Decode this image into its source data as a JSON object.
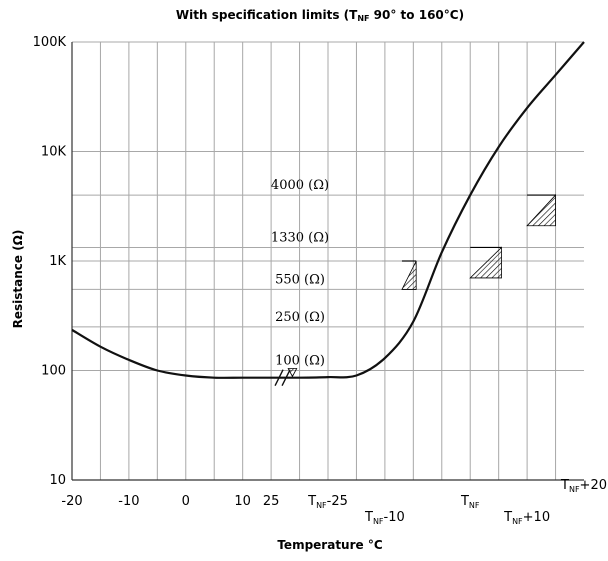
{
  "chart_data": {
    "type": "line",
    "title": "With specification limits (T_NF 90° to 160°C)",
    "title_parts": {
      "pre": "With specification limits (T",
      "sub": "NF",
      "post": " 90° to 160°C)"
    },
    "xlabel": "Temperature °C",
    "ylabel": "Resistance (Ω)",
    "yscale": "log",
    "ylim": [
      10,
      100000
    ],
    "y_ticks": [
      {
        "value": 10,
        "label": "10"
      },
      {
        "value": 100,
        "label": "100"
      },
      {
        "value": 1000,
        "label": "1K"
      },
      {
        "value": 10000,
        "label": "10K"
      },
      {
        "value": 100000,
        "label": "100K"
      }
    ],
    "x_tick_labels": [
      {
        "label": "-20",
        "row": 0
      },
      {
        "label": "-10",
        "row": 0
      },
      {
        "label": "0",
        "row": 0
      },
      {
        "label": "10",
        "row": 0
      },
      {
        "label": "25",
        "row": 0
      },
      {
        "label": "T_NF-25",
        "row": 0
      },
      {
        "label": "T_NF-10",
        "row": 1
      },
      {
        "label": "T_NF",
        "row": 0
      },
      {
        "label": "T_NF+10",
        "row": 1
      },
      {
        "label": "T_NF+20",
        "row": -1
      }
    ],
    "x_grid_count": 18,
    "horizontal_grid_ohms": [
      250,
      550,
      1330,
      4000
    ],
    "level_labels": [
      {
        "text": "4000 (Ω)",
        "ohms": 4000
      },
      {
        "text": "1330 (Ω)",
        "ohms": 1330
      },
      {
        "text": "550 (Ω)",
        "ohms": 550
      },
      {
        "text": "250 (Ω)",
        "ohms": 250
      },
      {
        "text": "100 (Ω)",
        "ohms": 100
      }
    ],
    "series": [
      {
        "x_index": [
          0,
          1,
          2,
          3,
          4,
          5,
          6,
          7,
          8,
          9,
          10,
          11,
          12,
          13,
          14,
          15,
          16,
          17,
          18
        ],
        "y": [
          235,
          165,
          125,
          100,
          90,
          86,
          86,
          86,
          86,
          87,
          90,
          130,
          280,
          1200,
          4000,
          11000,
          25000,
          50000,
          100000
        ]
      }
    ],
    "spec_limit_tolerance_zones": [
      {
        "x_index": [
          11.6,
          12.1
        ],
        "ohms": [
          550,
          1000
        ]
      },
      {
        "x_index": [
          14.0,
          15.1
        ],
        "ohms": [
          700,
          1330
        ]
      },
      {
        "x_index": [
          16.0,
          17.0
        ],
        "ohms": [
          2100,
          4000
        ]
      }
    ],
    "axis_break_x_index": 7.35,
    "grid": true,
    "legend": "none"
  }
}
